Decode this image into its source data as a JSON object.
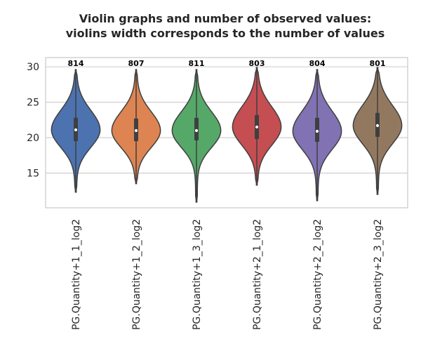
{
  "chart_data": {
    "type": "violin",
    "title_line1": "Violin graphs and number of observed values:",
    "title_line2": "violins width corresponds to the number of values",
    "xlabel": "",
    "ylabel": "",
    "ylim": [
      10.1,
      31.3
    ],
    "yticks": [
      15,
      20,
      25,
      30
    ],
    "grid": "horizontal",
    "categories": [
      "PG.Quantity+1_1_log2",
      "PG.Quantity+1_2_log2",
      "PG.Quantity+1_3_log2",
      "PG.Quantity+2_1_log2",
      "PG.Quantity+2_2_log2",
      "PG.Quantity+2_3_log2"
    ],
    "counts": [
      "814",
      "807",
      "811",
      "803",
      "804",
      "801"
    ],
    "colors": [
      "#4c72b0",
      "#dd8452",
      "#55a868",
      "#c44e52",
      "#8172b3",
      "#937860"
    ],
    "violins": [
      {
        "min": 12.3,
        "q1": 19.5,
        "median": 21.1,
        "q3": 22.8,
        "max": 29.6
      },
      {
        "min": 13.5,
        "q1": 19.5,
        "median": 21.0,
        "q3": 22.7,
        "max": 29.6
      },
      {
        "min": 10.9,
        "q1": 19.6,
        "median": 21.0,
        "q3": 22.8,
        "max": 29.6
      },
      {
        "min": 13.3,
        "q1": 19.8,
        "median": 21.5,
        "q3": 23.2,
        "max": 29.9
      },
      {
        "min": 11.1,
        "q1": 19.4,
        "median": 20.9,
        "q3": 22.8,
        "max": 29.6
      },
      {
        "min": 12.0,
        "q1": 20.1,
        "median": 21.7,
        "q3": 23.5,
        "max": 29.9
      }
    ]
  }
}
